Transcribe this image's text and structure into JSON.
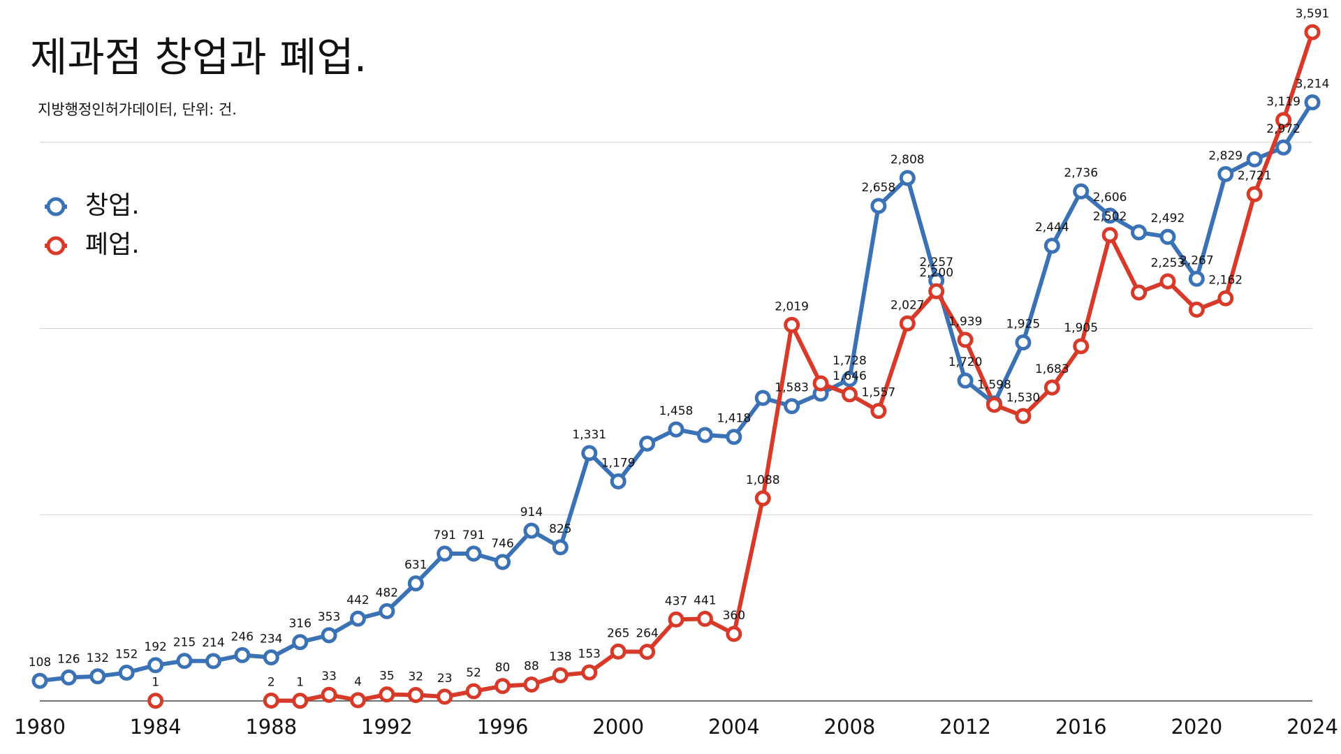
{
  "chart_data": {
    "type": "line",
    "title": "제과점 창업과 폐업.",
    "subtitle": "지방행정인허가데이터, 단위: 건.",
    "x": [
      1980,
      1981,
      1982,
      1983,
      1984,
      1985,
      1986,
      1987,
      1988,
      1989,
      1990,
      1991,
      1992,
      1993,
      1994,
      1995,
      1996,
      1997,
      1998,
      1999,
      2000,
      2001,
      2002,
      2003,
      2004,
      2005,
      2006,
      2007,
      2008,
      2009,
      2010,
      2011,
      2012,
      2013,
      2014,
      2015,
      2016,
      2017,
      2018,
      2019,
      2020,
      2021,
      2022,
      2023,
      2024
    ],
    "xlim": [
      1980,
      2024
    ],
    "xticks": [
      1980,
      1984,
      1988,
      1992,
      1996,
      2000,
      2004,
      2008,
      2012,
      2016,
      2020,
      2024
    ],
    "ylim": [
      0,
      3700
    ],
    "ygrid": [
      1000,
      2000,
      3000
    ],
    "legend": "upper left",
    "series": [
      {
        "name": "창업.",
        "color": "#3a72b5",
        "values": [
          108,
          126,
          132,
          152,
          192,
          215,
          214,
          246,
          234,
          316,
          353,
          442,
          482,
          631,
          791,
          791,
          746,
          914,
          825,
          1331,
          1179,
          1382,
          1458,
          1428,
          1418,
          1627,
          1583,
          1650,
          1728,
          2658,
          2808,
          2257,
          1720,
          1598,
          1925,
          2444,
          2736,
          2606,
          2516,
          2492,
          2267,
          2829,
          2908,
          2972,
          3214
        ],
        "value_labels": [
          "108",
          "126",
          "132",
          "152",
          "192",
          "215",
          "214",
          "246",
          "234",
          "316",
          "353",
          "442",
          "482",
          "631",
          "791",
          "791",
          "746",
          "914",
          "825",
          "1,331",
          "1,179",
          null,
          "1,458",
          null,
          "1,418",
          null,
          "1,583",
          null,
          "1,728",
          "2,658",
          "2,808",
          "2,257",
          "1,720",
          "1,598",
          "1,925",
          "2,444",
          "2,736",
          "2,606",
          null,
          "2,492",
          "2,267",
          "2,829",
          null,
          "2,972",
          "3,214"
        ]
      },
      {
        "name": "폐업.",
        "color": "#d83a2a",
        "values": [
          null,
          null,
          null,
          null,
          1,
          null,
          null,
          null,
          2,
          1,
          33,
          4,
          35,
          32,
          23,
          52,
          80,
          88,
          138,
          153,
          265,
          264,
          437,
          441,
          360,
          1088,
          2019,
          1705,
          1646,
          1557,
          2027,
          2200,
          1939,
          1590,
          1530,
          1683,
          1905,
          2502,
          2193,
          2253,
          2101,
          2162,
          2721,
          3119,
          3591
        ],
        "value_labels": [
          null,
          null,
          null,
          null,
          "1",
          null,
          null,
          null,
          "2",
          "1",
          "33",
          "4",
          "35",
          "32",
          "23",
          "52",
          "80",
          "88",
          "138",
          "153",
          "265",
          "264",
          "437",
          "441",
          "360",
          "1,088",
          "2,019",
          null,
          "1,646",
          "1,557",
          "2,027",
          "2,200",
          "1,939",
          null,
          "1,530",
          "1,683",
          "1,905",
          "2,502",
          null,
          "2,253",
          null,
          "2,162",
          "2,721",
          "3,119",
          "3,591"
        ]
      }
    ]
  }
}
